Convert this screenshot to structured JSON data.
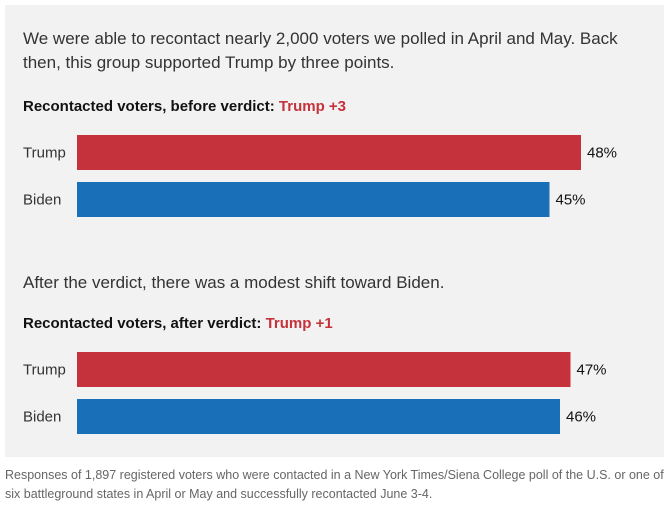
{
  "intro_text": "We were able to recontact nearly 2,000 voters we polled in April and May. Back then, this group supported Trump by three points.",
  "middle_text": "After the verdict, there was a modest shift toward Biden.",
  "note": "Responses of 1,897 registered voters who were contacted in a New York Times/Siena College poll of the U.S. or one of six battleground states in April or May and successfully recontacted June 3-4.",
  "colors": {
    "trump": "#c5323b",
    "biden": "#1a70b8",
    "highlight": "#c5323b"
  },
  "chart_data": [
    {
      "type": "bar",
      "orientation": "horizontal",
      "title": "Recontacted voters, before verdict:",
      "title_highlight": "Trump +3",
      "categories": [
        "Trump",
        "Biden"
      ],
      "values": [
        48,
        45
      ],
      "value_labels": [
        "48%",
        "45%"
      ],
      "unit": "%",
      "xlim": [
        0,
        50
      ],
      "grid": false,
      "legend": "none"
    },
    {
      "type": "bar",
      "orientation": "horizontal",
      "title": "Recontacted voters, after verdict:",
      "title_highlight": "Trump +1",
      "categories": [
        "Trump",
        "Biden"
      ],
      "values": [
        47,
        46
      ],
      "value_labels": [
        "47%",
        "46%"
      ],
      "unit": "%",
      "xlim": [
        0,
        50
      ],
      "grid": false,
      "legend": "none"
    }
  ]
}
